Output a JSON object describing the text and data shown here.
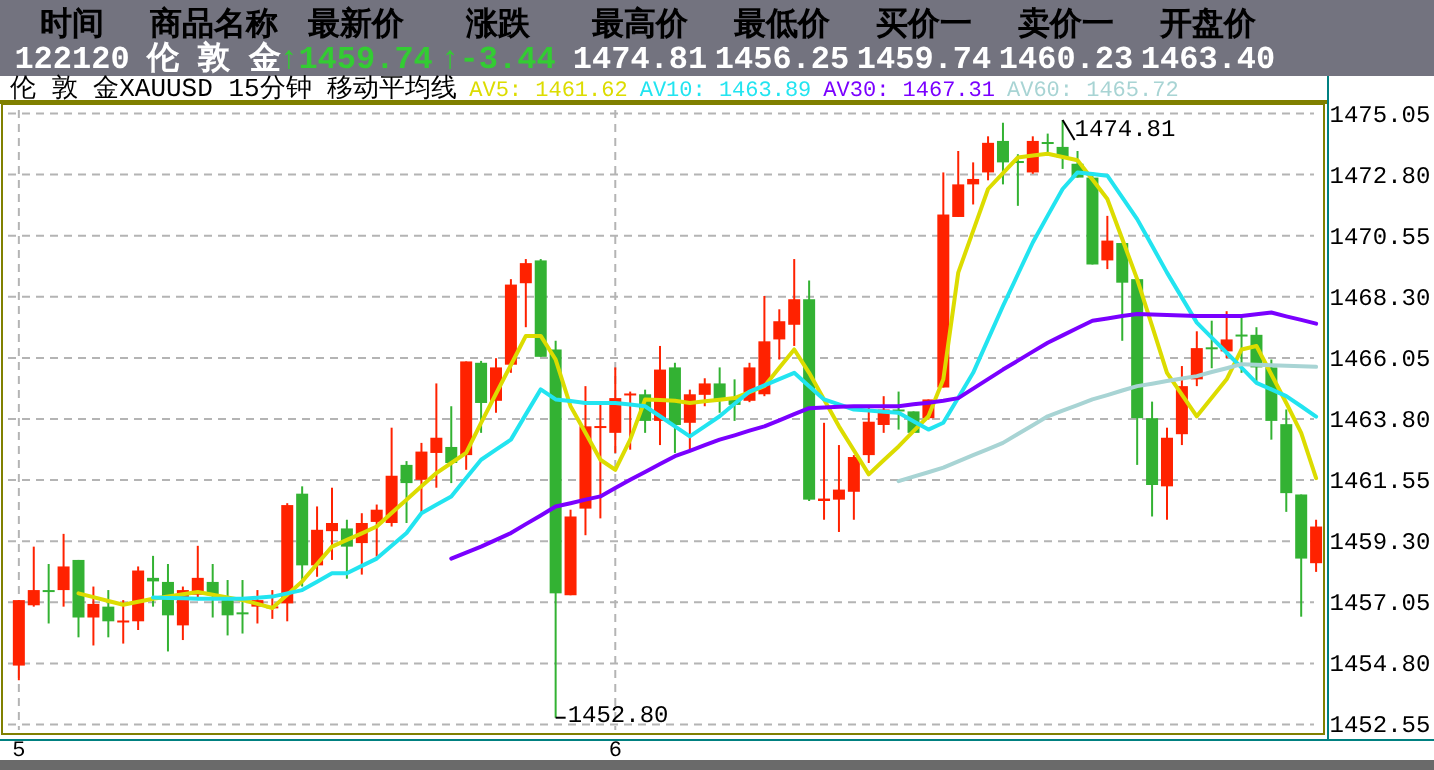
{
  "chart_data": [
    {
      "type": "other",
      "annotations": [
        "时间",
        "商品名称",
        "最新价",
        "涨跌",
        "最高价",
        "最低价",
        "买价一",
        "卖价一",
        "开盘价",
        "122120",
        "伦 敦 金",
        "↑1459.74",
        "↑-3.44",
        "1474.81",
        "1456.25",
        "1459.74",
        "1460.23",
        "1463.40"
      ],
      "colors": [
        "#000000",
        "#000000",
        "#000000",
        "#000000",
        "#000000",
        "#000000",
        "#000000",
        "#000000",
        "#000000",
        "#ffffff",
        "#ffffff",
        "#33cc33",
        "#33cc33",
        "#ffffff",
        "#ffffff",
        "#ffffff",
        "#ffffff",
        "#ffffff"
      ]
    },
    {
      "type": "candlestick",
      "title": "伦 敦 金XAUUSD 15分钟 移动平均线",
      "legend": "top right",
      "grid": true,
      "categories": [
        "5",
        null,
        null,
        null,
        null,
        null,
        null,
        null,
        null,
        null,
        null,
        null,
        null,
        null,
        null,
        null,
        null,
        null,
        null,
        null,
        null,
        null,
        null,
        null,
        null,
        null,
        null,
        null,
        null,
        null,
        null,
        null,
        null,
        null,
        null,
        null,
        null,
        null,
        null,
        null,
        "6",
        null,
        null,
        null,
        null,
        null,
        null,
        null,
        null,
        null,
        null,
        null,
        null,
        null,
        null,
        null,
        null,
        null,
        null,
        null,
        null,
        null,
        null,
        null,
        null,
        null,
        null,
        null,
        null,
        null,
        null,
        null,
        null,
        null,
        null,
        null,
        null,
        null,
        null,
        null,
        null,
        null,
        null,
        null,
        null,
        null,
        null,
        null
      ],
      "ohlc": [
        [
          1454.72,
          1457.13,
          1454.18,
          1457.13
        ],
        [
          1456.94,
          1459.1,
          1456.89,
          1457.5
        ],
        [
          1457.5,
          1458.46,
          1456.27,
          1457.45
        ],
        [
          1457.5,
          1459.57,
          1456.89,
          1458.37
        ],
        [
          1458.61,
          1458.61,
          1455.76,
          1456.49
        ],
        [
          1456.49,
          1457.63,
          1455.46,
          1456.99
        ],
        [
          1456.89,
          1457.5,
          1455.76,
          1456.35
        ],
        [
          1456.35,
          1457.13,
          1455.53,
          1456.38
        ],
        [
          1456.35,
          1458.37,
          1456.03,
          1458.22
        ],
        [
          1457.95,
          1458.76,
          1456.89,
          1457.82
        ],
        [
          1457.8,
          1458.46,
          1455.24,
          1456.57
        ],
        [
          1456.2,
          1457.63,
          1455.66,
          1457.5
        ],
        [
          1457.33,
          1459.13,
          1457.13,
          1457.95
        ],
        [
          1457.8,
          1458.46,
          1456.49,
          1457.31
        ],
        [
          1457.13,
          1457.87,
          1455.83,
          1456.57
        ],
        [
          1456.68,
          1457.87,
          1455.9,
          1456.66
        ],
        [
          1456.89,
          1457.5,
          1456.27,
          1457.13
        ],
        [
          1456.88,
          1457.5,
          1456.44,
          1456.9
        ],
        [
          1457.01,
          1460.7,
          1456.35,
          1460.63
        ],
        [
          1461.05,
          1461.32,
          1457.63,
          1458.41
        ],
        [
          1458.41,
          1460.58,
          1457.99,
          1459.72
        ],
        [
          1459.67,
          1461.27,
          1458.61,
          1459.97
        ],
        [
          1459.77,
          1460.09,
          1457.92,
          1459.1
        ],
        [
          1459.23,
          1460.33,
          1458.07,
          1459.97
        ],
        [
          1460.01,
          1460.65,
          1458.73,
          1460.46
        ],
        [
          1459.97,
          1463.48,
          1459.84,
          1461.71
        ],
        [
          1462.11,
          1462.25,
          1459.97,
          1461.44
        ],
        [
          1461.56,
          1462.92,
          1460.33,
          1462.6
        ],
        [
          1462.55,
          1465.11,
          1461.27,
          1463.11
        ],
        [
          1462.77,
          1464.27,
          1461.44,
          1462.18
        ],
        [
          1462.47,
          1465.92,
          1461.93,
          1465.92
        ],
        [
          1465.87,
          1465.94,
          1463.29,
          1464.39
        ],
        [
          1464.47,
          1466.04,
          1464.03,
          1465.7
        ],
        [
          1465.8,
          1468.95,
          1465.5,
          1468.75
        ],
        [
          1468.8,
          1469.69,
          1467.18,
          1469.54
        ],
        [
          1469.64,
          1469.69,
          1466.09,
          1466.09
        ],
        [
          1466.36,
          1466.68,
          1452.8,
          1457.38
        ],
        [
          1457.31,
          1460.46,
          1457.31,
          1460.21
        ],
        [
          1460.5,
          1465.01,
          1459.52,
          1463.53
        ],
        [
          1463.52,
          1464.39,
          1460.14,
          1463.54
        ],
        [
          1463.29,
          1465.7,
          1462.55,
          1464.57
        ],
        [
          1464.72,
          1464.81,
          1462.67,
          1464.74
        ],
        [
          1464.71,
          1464.88,
          1463.29,
          1463.73
        ],
        [
          1463.73,
          1466.49,
          1462.84,
          1465.62
        ],
        [
          1465.7,
          1465.87,
          1462.55,
          1463.58
        ],
        [
          1463.66,
          1464.88,
          1462.67,
          1464.71
        ],
        [
          1464.69,
          1465.3,
          1464.27,
          1465.11
        ],
        [
          1465.11,
          1465.7,
          1464.03,
          1464.47
        ],
        [
          1464.52,
          1465.26,
          1463.73,
          1464.32
        ],
        [
          1464.47,
          1465.87,
          1464.42,
          1465.7
        ],
        [
          1464.71,
          1468.33,
          1464.64,
          1466.66
        ],
        [
          1466.73,
          1467.84,
          1465.99,
          1467.4
        ],
        [
          1467.27,
          1469.69,
          1466.49,
          1468.21
        ],
        [
          1468.21,
          1468.9,
          1460.78,
          1460.83
        ],
        [
          1460.78,
          1463.66,
          1460.09,
          1460.87
        ],
        [
          1460.83,
          1462.84,
          1459.64,
          1461.2
        ],
        [
          1461.12,
          1462.47,
          1460.09,
          1462.4
        ],
        [
          1462.47,
          1464.27,
          1462.18,
          1463.7
        ],
        [
          1463.58,
          1464.64,
          1463.29,
          1464.15
        ],
        [
          1464.15,
          1464.81,
          1463.41,
          1464.13
        ],
        [
          1464.08,
          1464.08,
          1463.29,
          1463.29
        ],
        [
          1463.83,
          1464.52,
          1463.78,
          1464.52
        ],
        [
          1464.96,
          1472.88,
          1464.96,
          1471.33
        ],
        [
          1471.24,
          1473.67,
          1471.24,
          1472.44
        ],
        [
          1472.44,
          1473.25,
          1471.7,
          1472.64
        ],
        [
          1472.88,
          1474.21,
          1472.59,
          1473.97
        ],
        [
          1474.04,
          1474.71,
          1472.44,
          1473.25
        ],
        [
          1473.3,
          1473.55,
          1471.65,
          1473.28
        ],
        [
          1472.88,
          1474.21,
          1472.83,
          1474.04
        ],
        [
          1474.0,
          1474.31,
          1473.62,
          1473.98
        ],
        [
          1473.82,
          1474.81,
          1473.01,
          1473.43
        ],
        [
          1473.2,
          1473.67,
          1472.69,
          1472.69
        ],
        [
          1472.69,
          1472.88,
          1469.49,
          1469.49
        ],
        [
          1469.64,
          1471.28,
          1469.32,
          1470.37
        ],
        [
          1470.28,
          1470.28,
          1466.68,
          1468.82
        ],
        [
          1468.95,
          1468.95,
          1462.11,
          1463.83
        ],
        [
          1463.83,
          1464.44,
          1460.21,
          1461.37
        ],
        [
          1461.32,
          1463.48,
          1460.09,
          1463.11
        ],
        [
          1463.24,
          1465.75,
          1462.84,
          1465.01
        ],
        [
          1465.26,
          1467.03,
          1465.01,
          1466.41
        ],
        [
          1466.44,
          1467.42,
          1465.67,
          1466.42
        ],
        [
          1466.29,
          1467.77,
          1466.04,
          1466.73
        ],
        [
          1466.91,
          1467.54,
          1465.5,
          1466.89
        ],
        [
          1466.9,
          1467.18,
          1465.13,
          1465.7
        ],
        [
          1465.7,
          1465.99,
          1463.04,
          1463.73
        ],
        [
          1463.61,
          1464.15,
          1460.38,
          1461.07
        ],
        [
          1461.02,
          1461.02,
          1456.52,
          1458.66
        ],
        [
          1458.49,
          1460.09,
          1458.17,
          1459.84
        ]
      ],
      "colors": [
        "#ff2200",
        "#ff2200",
        "#33b233",
        "#ff2200",
        "#33b233",
        "#ff2200",
        "#33b233",
        "#ff2200",
        "#ff2200",
        "#33b233",
        "#33b233",
        "#ff2200",
        "#ff2200",
        "#33b233",
        "#33b233",
        "#33b233",
        "#ff2200",
        "#ff2200",
        "#ff2200",
        "#33b233",
        "#ff2200",
        "#ff2200",
        "#33b233",
        "#ff2200",
        "#ff2200",
        "#ff2200",
        "#33b233",
        "#ff2200",
        "#ff2200",
        "#33b233",
        "#ff2200",
        "#33b233",
        "#ff2200",
        "#ff2200",
        "#ff2200",
        "#33b233",
        "#33b233",
        "#ff2200",
        "#ff2200",
        "#ff2200",
        "#ff2200",
        "#ff2200",
        "#33b233",
        "#ff2200",
        "#33b233",
        "#ff2200",
        "#ff2200",
        "#33b233",
        "#33b233",
        "#ff2200",
        "#ff2200",
        "#ff2200",
        "#ff2200",
        "#33b233",
        "#ff2200",
        "#ff2200",
        "#ff2200",
        "#ff2200",
        "#ff2200",
        "#33b233",
        "#33b233",
        "#ff2200",
        "#ff2200",
        "#ff2200",
        "#ff2200",
        "#ff2200",
        "#33b233",
        "#33b233",
        "#ff2200",
        "#33b233",
        "#33b233",
        "#33b233",
        "#33b233",
        "#ff2200",
        "#33b233",
        "#33b233",
        "#33b233",
        "#ff2200",
        "#ff2200",
        "#ff2200",
        "#33b233",
        "#ff2200",
        "#33b233",
        "#33b233",
        "#33b233",
        "#33b233",
        "#33b233",
        "#ff2200"
      ],
      "series": [
        {
          "name": "AV5: 1461.62",
          "type": "line",
          "color": "#dcdc00",
          "values": [
            null,
            null,
            null,
            null,
            1457.38,
            1457.24,
            1457.1,
            1456.96,
            1457.07,
            1457.18,
            1457.26,
            1457.35,
            1457.43,
            1457.33,
            1457.23,
            1457.13,
            1456.99,
            1456.84,
            1457.33,
            1457.82,
            1458.46,
            1459.1,
            1459.35,
            1459.59,
            1459.84,
            1460.34,
            1460.83,
            1461.32,
            1461.81,
            1462.18,
            1462.55,
            1463.66,
            1464.73,
            1465.79,
            1466.86,
            1466.86,
            1465.99,
            1464.27,
            1463.29,
            1462.3,
            1461.93,
            1463.04,
            1464.52,
            1464.5,
            1464.47,
            1464.39,
            1464.45,
            1464.51,
            1464.57,
            1464.79,
            1465.01,
            1465.69,
            1466.36,
            1465.5,
            1464.52,
            1463.53,
            1462.65,
            1461.76,
            1462.28,
            1462.79,
            1463.35,
            1463.9,
            1465.26,
            1469.19,
            1470.73,
            1472.27,
            1472.85,
            1473.43,
            1473.5,
            1473.57,
            1473.45,
            1473.33,
            1472.62,
            1471.9,
            1470.43,
            1468.95,
            1467.23,
            1465.5,
            1464.7,
            1463.9,
            1464.58,
            1465.26,
            1466.36,
            1466.49,
            1465.44,
            1464.39,
            1463.29,
            1461.62
          ]
        },
        {
          "name": "AV10: 1463.89",
          "type": "line",
          "color": "#22e4f0",
          "values": [
            null,
            null,
            null,
            null,
            null,
            null,
            null,
            null,
            null,
            1457.23,
            1457.21,
            1457.2,
            1457.18,
            1457.18,
            1457.18,
            1457.18,
            1457.22,
            1457.26,
            1457.38,
            1457.5,
            1457.81,
            1458.12,
            1458.12,
            1458.39,
            1458.66,
            1459.13,
            1459.6,
            1460.33,
            1460.64,
            1460.95,
            1461.63,
            1462.3,
            1462.67,
            1463.04,
            1463.97,
            1464.89,
            1464.52,
            1464.46,
            1464.39,
            1464.39,
            1464.39,
            1464.33,
            1464.27,
            1463.9,
            1463.53,
            1463.16,
            1463.53,
            1463.9,
            1464.36,
            1464.81,
            1465.04,
            1465.27,
            1465.5,
            1465.01,
            1464.52,
            1464.34,
            1464.15,
            1464.11,
            1464.07,
            1464.03,
            1463.72,
            1463.41,
            1463.66,
            1464.58,
            1465.5,
            1466.73,
            1467.96,
            1469.13,
            1470.3,
            1471.29,
            1472.27,
            1472.88,
            1472.82,
            1472.76,
            1471.96,
            1471.16,
            1470.18,
            1469.19,
            1468.27,
            1467.35,
            1466.8,
            1466.24,
            1465.69,
            1465.13,
            1464.89,
            1464.64,
            1464.27,
            1463.89
          ]
        },
        {
          "name": "AV30: 1467.31",
          "type": "line",
          "color": "#7a00ff",
          "values": [
            null,
            null,
            null,
            null,
            null,
            null,
            null,
            null,
            null,
            null,
            null,
            null,
            null,
            null,
            null,
            null,
            null,
            null,
            null,
            null,
            null,
            null,
            null,
            null,
            null,
            null,
            null,
            null,
            null,
            1458.66,
            1458.88,
            1459.1,
            1459.35,
            1459.6,
            1459.93,
            1460.25,
            1460.58,
            1460.7,
            1460.83,
            1460.95,
            1461.26,
            1461.56,
            1461.85,
            1462.14,
            1462.43,
            1462.63,
            1462.84,
            1463.04,
            1463.2,
            1463.37,
            1463.53,
            1463.75,
            1463.98,
            1464.2,
            1464.22,
            1464.25,
            1464.27,
            1464.27,
            1464.27,
            1464.27,
            1464.34,
            1464.4,
            1464.47,
            1464.57,
            1464.92,
            1465.27,
            1465.62,
            1465.95,
            1466.28,
            1466.61,
            1466.88,
            1467.15,
            1467.42,
            1467.5,
            1467.59,
            1467.67,
            1467.65,
            1467.63,
            1467.61,
            1467.59,
            1467.59,
            1467.59,
            1467.59,
            1467.66,
            1467.72,
            1467.58,
            1467.45,
            1467.31
          ]
        },
        {
          "name": "AV60: 1465.72",
          "type": "line",
          "color": "#a8d4d4",
          "values": [
            null,
            null,
            null,
            null,
            null,
            null,
            null,
            null,
            null,
            null,
            null,
            null,
            null,
            null,
            null,
            null,
            null,
            null,
            null,
            null,
            null,
            null,
            null,
            null,
            null,
            null,
            null,
            null,
            null,
            null,
            null,
            null,
            null,
            null,
            null,
            null,
            null,
            null,
            null,
            null,
            null,
            null,
            null,
            null,
            null,
            null,
            null,
            null,
            null,
            null,
            null,
            null,
            null,
            null,
            null,
            null,
            null,
            null,
            null,
            1461.51,
            1461.68,
            1461.84,
            1462.01,
            1462.24,
            1462.47,
            1462.69,
            1462.92,
            1463.25,
            1463.57,
            1463.9,
            1464.11,
            1464.31,
            1464.52,
            1464.68,
            1464.85,
            1465.01,
            1465.1,
            1465.2,
            1465.29,
            1465.38,
            1465.53,
            1465.67,
            1465.82,
            1465.8,
            1465.78,
            1465.76,
            1465.74,
            1465.72
          ]
        }
      ],
      "ylim": [
        1452.2,
        1475.4
      ],
      "yticks": [
        {
          "value": 1452.55,
          "label": "1452.55"
        },
        {
          "value": 1454.8,
          "label": "1454.80"
        },
        {
          "value": 1457.05,
          "label": "1457.05"
        },
        {
          "value": 1459.3,
          "label": "1459.30"
        },
        {
          "value": 1461.55,
          "label": "1461.55"
        },
        {
          "value": 1463.8,
          "label": "1463.80"
        },
        {
          "value": 1466.05,
          "label": "1466.05"
        },
        {
          "value": 1468.3,
          "label": "1468.30"
        },
        {
          "value": 1470.55,
          "label": "1470.55"
        },
        {
          "value": 1472.8,
          "label": "1472.80"
        },
        {
          "value": 1475.05,
          "label": "1475.05"
        }
      ],
      "annotations": [
        "1474.81",
        "1452.80"
      ]
    }
  ]
}
